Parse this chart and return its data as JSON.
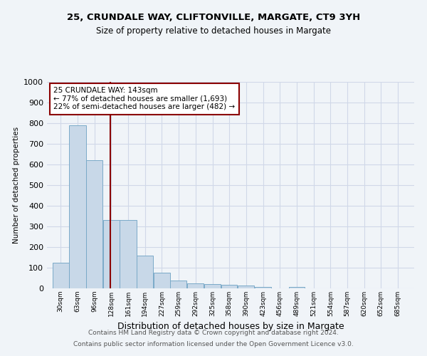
{
  "title1": "25, CRUNDALE WAY, CLIFTONVILLE, MARGATE, CT9 3YH",
  "title2": "Size of property relative to detached houses in Margate",
  "xlabel": "Distribution of detached houses by size in Margate",
  "ylabel": "Number of detached properties",
  "footnote1": "Contains HM Land Registry data © Crown copyright and database right 2024.",
  "footnote2": "Contains public sector information licensed under the Open Government Licence v3.0.",
  "bar_labels": [
    "30sqm",
    "63sqm",
    "96sqm",
    "128sqm",
    "161sqm",
    "194sqm",
    "227sqm",
    "259sqm",
    "292sqm",
    "325sqm",
    "358sqm",
    "390sqm",
    "423sqm",
    "456sqm",
    "489sqm",
    "521sqm",
    "554sqm",
    "587sqm",
    "620sqm",
    "652sqm",
    "685sqm"
  ],
  "bar_edges": [
    30,
    63,
    96,
    128,
    161,
    194,
    227,
    259,
    292,
    325,
    358,
    390,
    423,
    456,
    489,
    521,
    554,
    587,
    620,
    652,
    685,
    718
  ],
  "bar_heights": [
    125,
    790,
    620,
    330,
    330,
    160,
    75,
    38,
    25,
    20,
    17,
    13,
    8,
    0,
    8,
    0,
    0,
    0,
    0,
    0,
    0
  ],
  "bar_color": "#c8d8e8",
  "bar_edgecolor": "#7aaac8",
  "vline_x": 143,
  "vline_color": "#8b0000",
  "annotation_text": "25 CRUNDALE WAY: 143sqm\n← 77% of detached houses are smaller (1,693)\n22% of semi-detached houses are larger (482) →",
  "annotation_box_color": "#ffffff",
  "annotation_box_edgecolor": "#8b0000",
  "ylim": [
    0,
    1000
  ],
  "yticks": [
    0,
    100,
    200,
    300,
    400,
    500,
    600,
    700,
    800,
    900,
    1000
  ],
  "grid_color": "#d0d8e8",
  "background_color": "#f0f4f8"
}
